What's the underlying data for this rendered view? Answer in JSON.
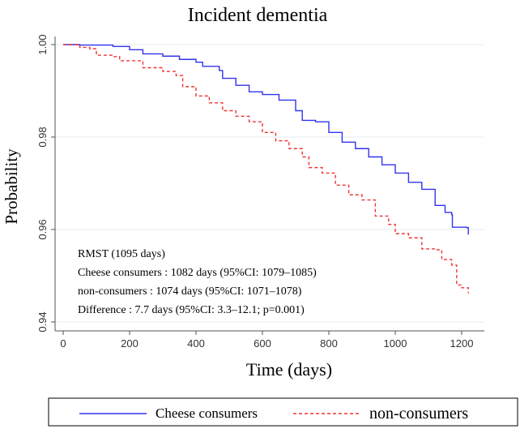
{
  "chart_data": {
    "type": "line",
    "title": "Incident dementia",
    "xlabel": "Time (days)",
    "ylabel": "Probability",
    "xlim": [
      0,
      1220
    ],
    "ylim": [
      0.94,
      1.0
    ],
    "xticks": [
      "0",
      "200",
      "400",
      "600",
      "800",
      "1000",
      "1200"
    ],
    "xtick_values": [
      0,
      200,
      400,
      600,
      800,
      1000,
      1200
    ],
    "yticks": [
      "0.94",
      "0.96",
      "0.98",
      "1.00"
    ],
    "ytick_values": [
      0.94,
      0.96,
      0.98,
      1.0
    ],
    "grid": true,
    "legend_position": "bottom",
    "series": [
      {
        "name": "Cheese consumers",
        "color": "#3333ee",
        "style": "solid",
        "x": [
          0,
          50,
          150,
          200,
          240,
          300,
          350,
          400,
          420,
          470,
          480,
          520,
          560,
          600,
          650,
          700,
          720,
          760,
          800,
          840,
          880,
          920,
          960,
          1000,
          1040,
          1080,
          1120,
          1150,
          1170,
          1172,
          1215,
          1220
        ],
        "y": [
          1.0,
          0.9999,
          0.9996,
          0.9989,
          0.998,
          0.9975,
          0.9968,
          0.9962,
          0.9953,
          0.9944,
          0.9927,
          0.9912,
          0.9898,
          0.9892,
          0.988,
          0.9857,
          0.9836,
          0.9833,
          0.981,
          0.9789,
          0.9775,
          0.9757,
          0.974,
          0.9722,
          0.9702,
          0.9687,
          0.9652,
          0.9637,
          0.9632,
          0.9605,
          0.9604,
          0.9589
        ]
      },
      {
        "name": "non-consumers",
        "color": "#ee3333",
        "style": "dashed",
        "x": [
          0,
          50,
          80,
          100,
          150,
          170,
          240,
          300,
          340,
          360,
          400,
          440,
          480,
          520,
          560,
          600,
          640,
          680,
          720,
          740,
          780,
          820,
          860,
          900,
          940,
          980,
          1000,
          1040,
          1080,
          1120,
          1140,
          1170,
          1185,
          1200,
          1220
        ],
        "y": [
          1.0,
          0.9994,
          0.9991,
          0.9977,
          0.9974,
          0.9965,
          0.995,
          0.9942,
          0.9933,
          0.9909,
          0.9889,
          0.9874,
          0.9857,
          0.9845,
          0.9833,
          0.981,
          0.9792,
          0.9775,
          0.9757,
          0.9734,
          0.9722,
          0.9696,
          0.9675,
          0.9664,
          0.9629,
          0.9611,
          0.9591,
          0.9582,
          0.9558,
          0.9556,
          0.9535,
          0.9523,
          0.948,
          0.9474,
          0.9462
        ]
      }
    ],
    "annotations": [
      "RMST (1095 days)",
      "Cheese consumers : 1082 days (95%CI: 1079–1085)",
      "non-consumers : 1074 days (95%CI: 1071–1078)",
      "Difference : 7.7 days (95%CI: 3.3–12.1; p=0.001)"
    ]
  }
}
